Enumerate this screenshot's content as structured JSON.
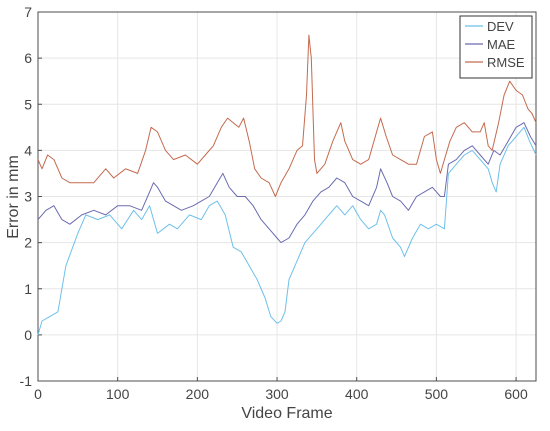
{
  "chart_data": {
    "type": "line",
    "xlabel": "Video Frame",
    "ylabel": "Error in mm",
    "xlim": [
      0,
      625
    ],
    "ylim": [
      -1,
      7
    ],
    "xticks": [
      0,
      100,
      200,
      300,
      400,
      500,
      600
    ],
    "yticks": [
      -1,
      0,
      1,
      2,
      3,
      4,
      5,
      6,
      7
    ],
    "grid": true,
    "legend_position": "top-right",
    "series": [
      {
        "name": "DEV",
        "color": "#6ec0ea",
        "points": [
          [
            0,
            0
          ],
          [
            5,
            0.3
          ],
          [
            15,
            0.4
          ],
          [
            25,
            0.5
          ],
          [
            35,
            1.5
          ],
          [
            50,
            2.2
          ],
          [
            60,
            2.6
          ],
          [
            75,
            2.5
          ],
          [
            90,
            2.6
          ],
          [
            105,
            2.3
          ],
          [
            120,
            2.7
          ],
          [
            130,
            2.5
          ],
          [
            140,
            2.8
          ],
          [
            150,
            2.2
          ],
          [
            165,
            2.4
          ],
          [
            175,
            2.3
          ],
          [
            190,
            2.6
          ],
          [
            205,
            2.5
          ],
          [
            215,
            2.8
          ],
          [
            225,
            2.9
          ],
          [
            235,
            2.6
          ],
          [
            245,
            1.9
          ],
          [
            255,
            1.8
          ],
          [
            265,
            1.5
          ],
          [
            275,
            1.2
          ],
          [
            285,
            0.8
          ],
          [
            292,
            0.4
          ],
          [
            300,
            0.25
          ],
          [
            305,
            0.3
          ],
          [
            310,
            0.5
          ],
          [
            315,
            1.2
          ],
          [
            325,
            1.6
          ],
          [
            335,
            2.0
          ],
          [
            345,
            2.2
          ],
          [
            355,
            2.4
          ],
          [
            365,
            2.6
          ],
          [
            375,
            2.8
          ],
          [
            385,
            2.6
          ],
          [
            395,
            2.8
          ],
          [
            405,
            2.5
          ],
          [
            415,
            2.3
          ],
          [
            425,
            2.4
          ],
          [
            430,
            2.7
          ],
          [
            435,
            2.6
          ],
          [
            445,
            2.1
          ],
          [
            455,
            1.9
          ],
          [
            460,
            1.7
          ],
          [
            470,
            2.1
          ],
          [
            480,
            2.4
          ],
          [
            490,
            2.3
          ],
          [
            500,
            2.4
          ],
          [
            510,
            2.3
          ],
          [
            515,
            3.5
          ],
          [
            525,
            3.7
          ],
          [
            535,
            3.9
          ],
          [
            545,
            4.0
          ],
          [
            555,
            3.8
          ],
          [
            565,
            3.6
          ],
          [
            570,
            3.3
          ],
          [
            575,
            3.1
          ],
          [
            580,
            3.7
          ],
          [
            590,
            4.1
          ],
          [
            600,
            4.3
          ],
          [
            610,
            4.5
          ],
          [
            617,
            4.2
          ],
          [
            625,
            3.9
          ]
        ]
      },
      {
        "name": "MAE",
        "color": "#6a6bb0",
        "points": [
          [
            0,
            2.5
          ],
          [
            10,
            2.7
          ],
          [
            20,
            2.8
          ],
          [
            30,
            2.5
          ],
          [
            40,
            2.4
          ],
          [
            55,
            2.6
          ],
          [
            70,
            2.7
          ],
          [
            85,
            2.6
          ],
          [
            100,
            2.8
          ],
          [
            115,
            2.8
          ],
          [
            130,
            2.7
          ],
          [
            140,
            3.1
          ],
          [
            145,
            3.3
          ],
          [
            150,
            3.2
          ],
          [
            160,
            2.9
          ],
          [
            170,
            2.8
          ],
          [
            180,
            2.7
          ],
          [
            195,
            2.8
          ],
          [
            205,
            2.9
          ],
          [
            215,
            3.0
          ],
          [
            225,
            3.3
          ],
          [
            232,
            3.5
          ],
          [
            240,
            3.2
          ],
          [
            250,
            3.0
          ],
          [
            260,
            3.0
          ],
          [
            270,
            2.8
          ],
          [
            280,
            2.5
          ],
          [
            290,
            2.3
          ],
          [
            300,
            2.1
          ],
          [
            305,
            2.0
          ],
          [
            315,
            2.1
          ],
          [
            325,
            2.4
          ],
          [
            335,
            2.6
          ],
          [
            345,
            2.9
          ],
          [
            355,
            3.1
          ],
          [
            365,
            3.2
          ],
          [
            375,
            3.4
          ],
          [
            385,
            3.3
          ],
          [
            395,
            3.0
          ],
          [
            405,
            2.9
          ],
          [
            415,
            2.8
          ],
          [
            425,
            3.2
          ],
          [
            430,
            3.6
          ],
          [
            438,
            3.3
          ],
          [
            445,
            3.0
          ],
          [
            455,
            2.9
          ],
          [
            465,
            2.7
          ],
          [
            475,
            3.0
          ],
          [
            485,
            3.1
          ],
          [
            495,
            3.2
          ],
          [
            505,
            3.0
          ],
          [
            510,
            3.0
          ],
          [
            515,
            3.7
          ],
          [
            525,
            3.8
          ],
          [
            535,
            4.0
          ],
          [
            545,
            4.1
          ],
          [
            555,
            3.9
          ],
          [
            565,
            3.7
          ],
          [
            572,
            4.0
          ],
          [
            580,
            3.9
          ],
          [
            590,
            4.2
          ],
          [
            600,
            4.5
          ],
          [
            610,
            4.6
          ],
          [
            618,
            4.3
          ],
          [
            625,
            4.1
          ]
        ]
      },
      {
        "name": "RMSE",
        "color": "#c46a4e",
        "points": [
          [
            0,
            3.8
          ],
          [
            5,
            3.6
          ],
          [
            12,
            3.9
          ],
          [
            20,
            3.8
          ],
          [
            30,
            3.4
          ],
          [
            40,
            3.3
          ],
          [
            55,
            3.3
          ],
          [
            70,
            3.3
          ],
          [
            85,
            3.6
          ],
          [
            95,
            3.4
          ],
          [
            110,
            3.6
          ],
          [
            125,
            3.5
          ],
          [
            135,
            4.0
          ],
          [
            142,
            4.5
          ],
          [
            150,
            4.4
          ],
          [
            160,
            4.0
          ],
          [
            170,
            3.8
          ],
          [
            185,
            3.9
          ],
          [
            200,
            3.7
          ],
          [
            210,
            3.9
          ],
          [
            220,
            4.1
          ],
          [
            230,
            4.5
          ],
          [
            238,
            4.7
          ],
          [
            245,
            4.6
          ],
          [
            252,
            4.5
          ],
          [
            258,
            4.7
          ],
          [
            265,
            4.2
          ],
          [
            272,
            3.6
          ],
          [
            280,
            3.4
          ],
          [
            290,
            3.3
          ],
          [
            298,
            3.0
          ],
          [
            305,
            3.3
          ],
          [
            315,
            3.6
          ],
          [
            325,
            4.0
          ],
          [
            332,
            4.1
          ],
          [
            337,
            5.2
          ],
          [
            340,
            6.5
          ],
          [
            343,
            6.0
          ],
          [
            347,
            3.8
          ],
          [
            350,
            3.5
          ],
          [
            360,
            3.7
          ],
          [
            370,
            4.2
          ],
          [
            380,
            4.6
          ],
          [
            385,
            4.2
          ],
          [
            395,
            3.8
          ],
          [
            405,
            3.7
          ],
          [
            415,
            3.8
          ],
          [
            425,
            4.4
          ],
          [
            430,
            4.7
          ],
          [
            437,
            4.3
          ],
          [
            445,
            3.9
          ],
          [
            455,
            3.8
          ],
          [
            465,
            3.7
          ],
          [
            475,
            3.7
          ],
          [
            485,
            4.3
          ],
          [
            495,
            4.4
          ],
          [
            500,
            3.8
          ],
          [
            505,
            3.5
          ],
          [
            510,
            3.8
          ],
          [
            517,
            4.2
          ],
          [
            525,
            4.5
          ],
          [
            535,
            4.6
          ],
          [
            545,
            4.4
          ],
          [
            555,
            4.4
          ],
          [
            560,
            4.6
          ],
          [
            565,
            4.1
          ],
          [
            570,
            4.0
          ],
          [
            578,
            4.6
          ],
          [
            585,
            5.2
          ],
          [
            592,
            5.5
          ],
          [
            600,
            5.3
          ],
          [
            608,
            5.2
          ],
          [
            615,
            4.9
          ],
          [
            620,
            4.8
          ],
          [
            625,
            4.6
          ]
        ]
      }
    ]
  }
}
